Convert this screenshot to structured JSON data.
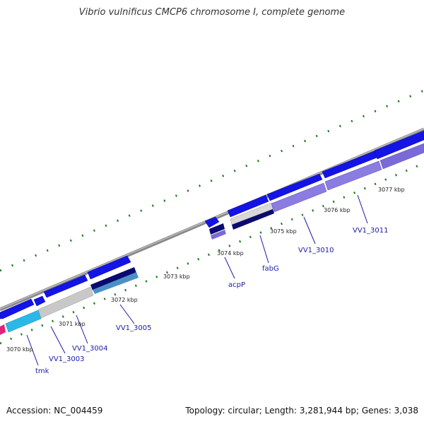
{
  "title": "Vibrio vulnificus CMCP6 chromosome I, complete genome",
  "footer": {
    "accession": "Accession: NC_004459",
    "summary": "Topology: circular; Length: 3,281,944 bp; Genes: 3,038"
  },
  "ticks": [
    "3070 kbp",
    "3071 kbp",
    "3072 kbp",
    "3073 kbp",
    "3074 kbp",
    "3075 kbp",
    "3076 kbp",
    "3077 kbp"
  ],
  "genes": [
    "tmk",
    "VV1_3003",
    "VV1_3004",
    "VV1_3005",
    "acpP",
    "fabG",
    "VV1_3010",
    "VV1_3011"
  ],
  "colors": {
    "backbone": "#8a8a8a",
    "cds": "#1414e6",
    "rna_light": "#9a8fe0",
    "tick_marks": "#1f7a1f",
    "label": "#1a1aa8",
    "accent_pink": "#e0247a",
    "accent_cyan": "#2ab8e8"
  }
}
